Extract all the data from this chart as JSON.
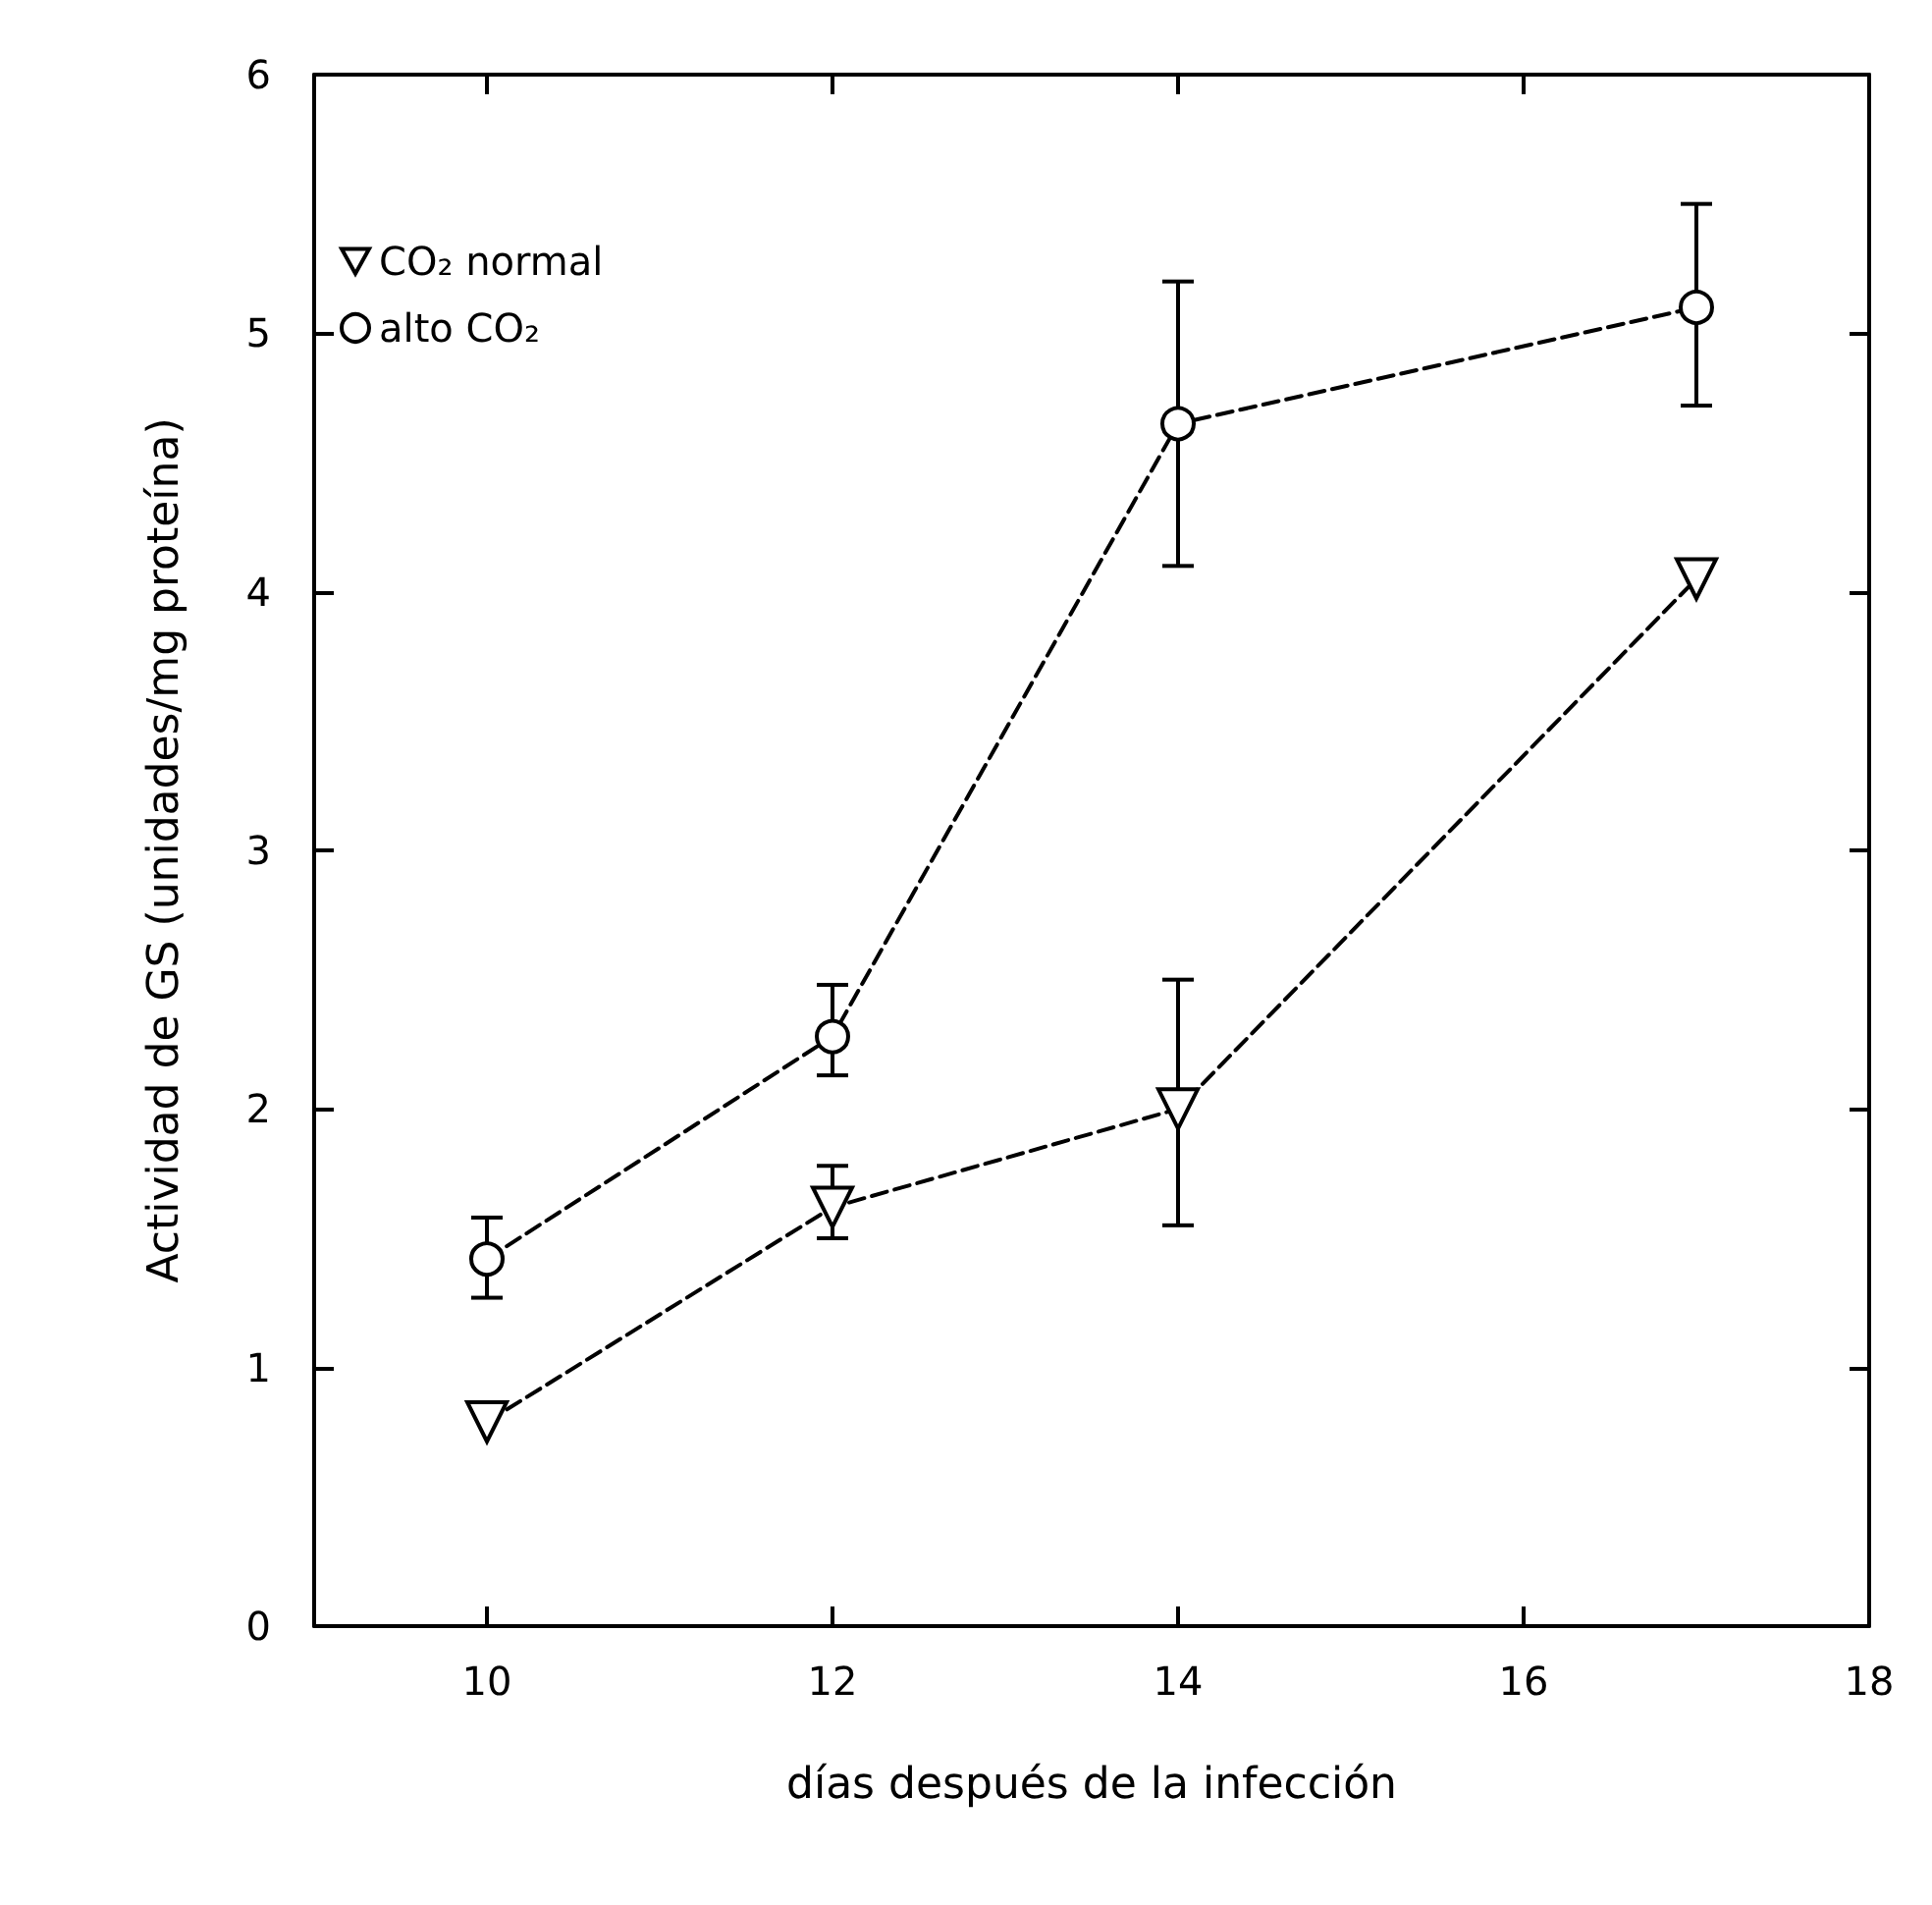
{
  "chart_data": {
    "type": "line",
    "xlabel": "días después de la infección",
    "ylabel": "Actividad de GS (unidades/mg proteína)",
    "xlim": [
      9,
      18
    ],
    "xticks": [
      10,
      12,
      14,
      16,
      18
    ],
    "ylim": [
      0,
      6
    ],
    "yticks": [
      0,
      1,
      2,
      3,
      4,
      5,
      6
    ],
    "grid": false,
    "legend": "top left",
    "line_style": "dashed",
    "series": [
      {
        "name": "CO₂ normal",
        "color": "#000000",
        "marker": "triangle",
        "x": [
          10,
          12,
          14,
          17
        ],
        "values": [
          0.79,
          1.62,
          2.0,
          4.05
        ],
        "errors": [
          null,
          [
            1.5,
            1.78
          ],
          [
            1.55,
            2.5
          ],
          null
        ]
      },
      {
        "name": "alto CO₂",
        "color": "#000000",
        "marker": "circle",
        "x": [
          10,
          12,
          14,
          17
        ],
        "values": [
          1.42,
          2.28,
          4.65,
          5.1
        ],
        "errors": [
          [
            1.27,
            1.58
          ],
          [
            2.13,
            2.48
          ],
          [
            4.1,
            5.2
          ],
          [
            4.72,
            5.5
          ]
        ]
      }
    ]
  }
}
